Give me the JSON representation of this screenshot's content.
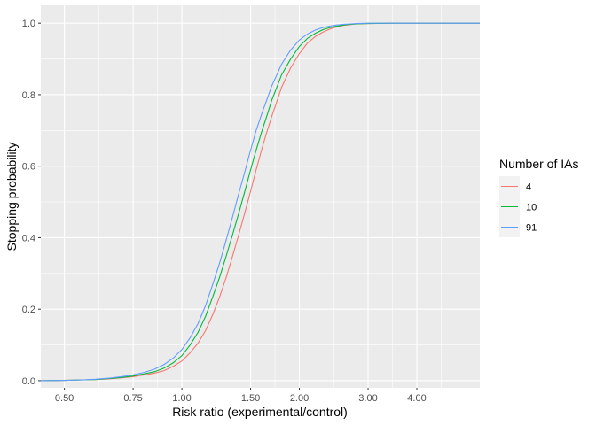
{
  "chart_data": {
    "type": "line",
    "title": "",
    "xlabel": "Risk ratio (experimental/control)",
    "ylabel": "Stopping probability",
    "x_scale": "log",
    "xlim": [
      0.435,
      5.8
    ],
    "ylim": [
      -0.02,
      1.05
    ],
    "x_ticks": [
      0.5,
      0.75,
      1.0,
      1.5,
      2.0,
      3.0,
      4.0
    ],
    "x_tick_labels": [
      "0.50",
      "0.75",
      "1.00",
      "1.50",
      "2.00",
      "3.00",
      "4.00"
    ],
    "y_ticks": [
      0.0,
      0.2,
      0.4,
      0.6,
      0.8,
      1.0
    ],
    "y_tick_labels": [
      "0.0",
      "0.2",
      "0.4",
      "0.6",
      "0.8",
      "1.0"
    ],
    "grid": true,
    "legend_title": "Number of IAs",
    "legend_position": "right",
    "x": [
      0.435,
      0.5,
      0.55,
      0.6,
      0.65,
      0.7,
      0.75,
      0.8,
      0.85,
      0.9,
      0.95,
      1.0,
      1.05,
      1.1,
      1.15,
      1.2,
      1.25,
      1.3,
      1.35,
      1.4,
      1.45,
      1.5,
      1.55,
      1.6,
      1.65,
      1.7,
      1.75,
      1.8,
      1.9,
      2.0,
      2.1,
      2.2,
      2.3,
      2.4,
      2.5,
      2.6,
      2.7,
      2.8,
      3.0,
      3.5,
      4.0,
      5.0,
      5.8
    ],
    "series": [
      {
        "name": "4",
        "color": "#F8766D",
        "values": [
          0.0,
          0.001,
          0.002,
          0.003,
          0.005,
          0.008,
          0.011,
          0.016,
          0.021,
          0.028,
          0.04,
          0.055,
          0.078,
          0.105,
          0.14,
          0.185,
          0.235,
          0.29,
          0.35,
          0.41,
          0.47,
          0.53,
          0.59,
          0.645,
          0.695,
          0.74,
          0.78,
          0.82,
          0.875,
          0.915,
          0.945,
          0.963,
          0.975,
          0.984,
          0.99,
          0.994,
          0.996,
          0.998,
          0.999,
          1.0,
          1.0,
          1.0,
          1.0
        ]
      },
      {
        "name": "10",
        "color": "#00BA38",
        "values": [
          0.0,
          0.001,
          0.002,
          0.003,
          0.006,
          0.009,
          0.013,
          0.019,
          0.025,
          0.035,
          0.05,
          0.07,
          0.1,
          0.135,
          0.18,
          0.235,
          0.29,
          0.35,
          0.41,
          0.47,
          0.53,
          0.59,
          0.645,
          0.695,
          0.74,
          0.785,
          0.82,
          0.855,
          0.9,
          0.935,
          0.958,
          0.972,
          0.982,
          0.988,
          0.992,
          0.995,
          0.997,
          0.998,
          0.999,
          1.0,
          1.0,
          1.0,
          1.0
        ]
      },
      {
        "name": "91",
        "color": "#619CFF",
        "values": [
          0.0,
          0.001,
          0.002,
          0.004,
          0.007,
          0.011,
          0.016,
          0.023,
          0.032,
          0.045,
          0.063,
          0.087,
          0.12,
          0.16,
          0.21,
          0.27,
          0.33,
          0.395,
          0.46,
          0.525,
          0.585,
          0.645,
          0.7,
          0.745,
          0.785,
          0.825,
          0.855,
          0.885,
          0.925,
          0.953,
          0.97,
          0.981,
          0.988,
          0.992,
          0.995,
          0.997,
          0.998,
          0.999,
          1.0,
          1.0,
          1.0,
          1.0,
          1.0
        ]
      }
    ]
  }
}
